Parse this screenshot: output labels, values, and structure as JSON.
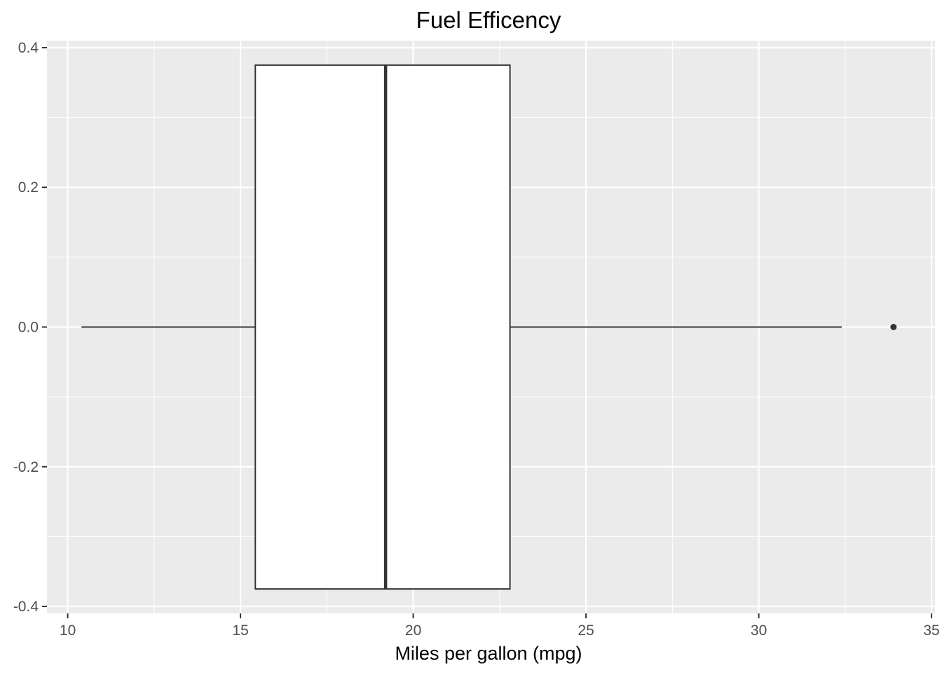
{
  "chart_data": {
    "type": "boxplot",
    "title": "Fuel Efficency",
    "xlabel": "Miles per gallon (mpg)",
    "ylabel": "",
    "xlim": [
      9.4,
      35.1
    ],
    "ylim": [
      -0.41,
      0.41
    ],
    "x_ticks": [
      10,
      15,
      20,
      25,
      30,
      35
    ],
    "x_tick_labels": [
      "10",
      "15",
      "20",
      "25",
      "30",
      "35"
    ],
    "y_ticks": [
      -0.4,
      -0.2,
      0.0,
      0.2,
      0.4
    ],
    "y_tick_labels": [
      "-0.4",
      "-0.2",
      "0.0",
      "0.2",
      "0.4"
    ],
    "grid": true,
    "box": {
      "whisker_low": 10.4,
      "q1": 15.43,
      "median": 19.2,
      "q3": 22.8,
      "whisker_high": 32.4,
      "y_center": 0.0,
      "half_width": 0.375
    },
    "outliers": [
      {
        "x": 33.9,
        "y": 0.0
      }
    ],
    "colors": {
      "panel_background": "#ebebeb",
      "grid_major": "#ffffff",
      "box_fill": "#ffffff",
      "box_stroke": "#333333",
      "point": "#333333"
    }
  }
}
